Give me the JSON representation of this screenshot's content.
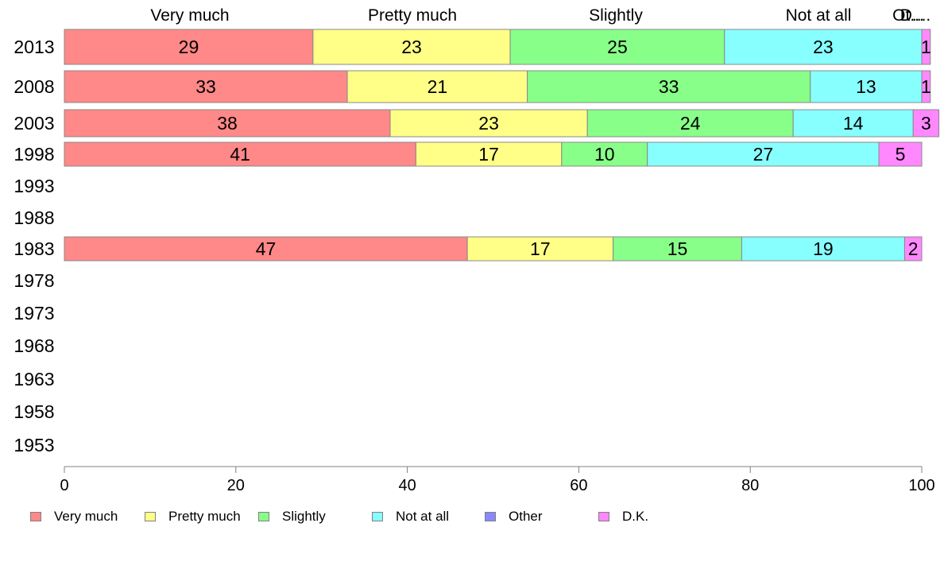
{
  "chart_data": {
    "type": "bar",
    "orientation": "horizontal",
    "stacked": true,
    "categories": [
      "2013",
      "2008",
      "2003",
      "1998",
      "1993",
      "1988",
      "1983",
      "1978",
      "1973",
      "1968",
      "1963",
      "1958",
      "1953"
    ],
    "series": [
      {
        "name": "Very much",
        "color": "#ff8888",
        "values": [
          29,
          33,
          38,
          41,
          null,
          null,
          47,
          null,
          null,
          null,
          null,
          null,
          null
        ]
      },
      {
        "name": "Pretty much",
        "color": "#ffff88",
        "values": [
          23,
          21,
          23,
          17,
          null,
          null,
          17,
          null,
          null,
          null,
          null,
          null,
          null
        ]
      },
      {
        "name": "Slightly",
        "color": "#88ff88",
        "values": [
          25,
          33,
          24,
          10,
          null,
          null,
          15,
          null,
          null,
          null,
          null,
          null,
          null
        ]
      },
      {
        "name": "Not at all",
        "color": "#88ffff",
        "values": [
          23,
          13,
          14,
          27,
          null,
          null,
          19,
          null,
          null,
          null,
          null,
          null,
          null
        ]
      },
      {
        "name": "Other",
        "color": "#8888ff",
        "values": [
          0,
          0,
          0,
          0,
          null,
          null,
          0,
          null,
          null,
          null,
          null,
          null,
          null
        ]
      },
      {
        "name": "D.K.",
        "color": "#ff88ff",
        "values": [
          1,
          1,
          3,
          5,
          null,
          null,
          2,
          null,
          null,
          null,
          null,
          null,
          null
        ]
      }
    ],
    "top_labels": [
      "Very much",
      "Pretty much",
      "Slightly",
      "Not at all",
      "Ot...",
      "D...."
    ],
    "xlim": [
      0,
      100
    ],
    "xticks": [
      0,
      20,
      40,
      60,
      80,
      100
    ],
    "legend_position": "bottom",
    "grid": false
  }
}
